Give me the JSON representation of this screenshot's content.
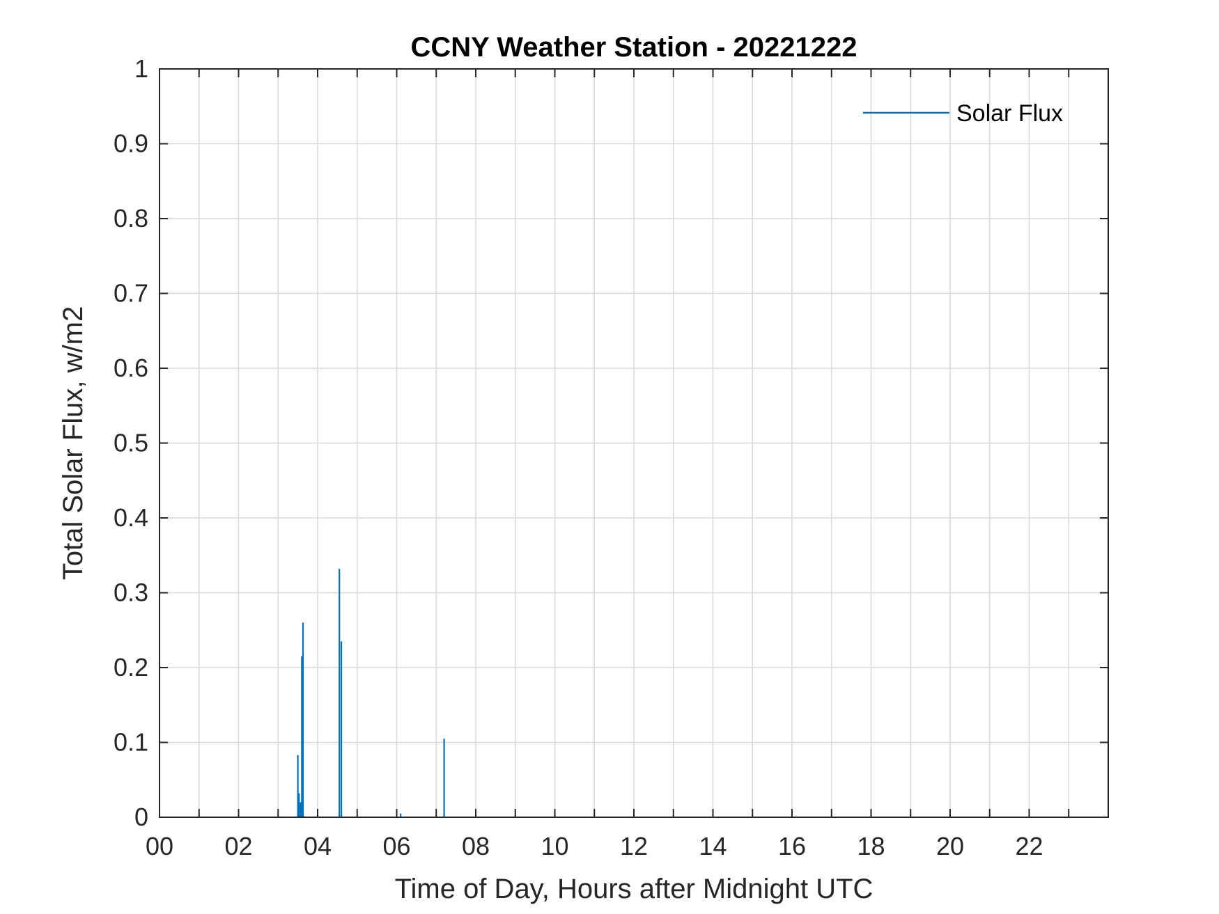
{
  "chart_data": {
    "type": "line",
    "title": "CCNY Weather Station - 20221222",
    "xlabel": "Time of Day, Hours after Midnight UTC",
    "ylabel": "Total Solar Flux, w/m2",
    "xlim": [
      0,
      24
    ],
    "ylim": [
      0,
      1
    ],
    "x_ticks": [
      0,
      2,
      4,
      6,
      8,
      10,
      12,
      14,
      16,
      18,
      20,
      22
    ],
    "x_tick_labels": [
      "00",
      "02",
      "04",
      "06",
      "08",
      "10",
      "12",
      "14",
      "16",
      "18",
      "20",
      "22"
    ],
    "x_minor_grid_step": 1,
    "y_ticks": [
      0,
      0.1,
      0.2,
      0.3,
      0.4,
      0.5,
      0.6,
      0.7,
      0.8,
      0.9,
      1
    ],
    "y_tick_labels": [
      "0",
      "0.1",
      "0.2",
      "0.3",
      "0.4",
      "0.5",
      "0.6",
      "0.7",
      "0.8",
      "0.9",
      "1"
    ],
    "grid": true,
    "legend_position": "top-right",
    "series": [
      {
        "name": "Solar Flux",
        "color": "#0072BD",
        "spikes": [
          {
            "x": 3.5,
            "y": 0.083
          },
          {
            "x": 3.53,
            "y": 0.032
          },
          {
            "x": 3.57,
            "y": 0.02
          },
          {
            "x": 3.6,
            "y": 0.215
          },
          {
            "x": 3.63,
            "y": 0.26
          },
          {
            "x": 4.55,
            "y": 0.332
          },
          {
            "x": 4.6,
            "y": 0.235
          },
          {
            "x": 6.1,
            "y": 0.005
          },
          {
            "x": 7.2,
            "y": 0.105
          }
        ]
      }
    ]
  }
}
